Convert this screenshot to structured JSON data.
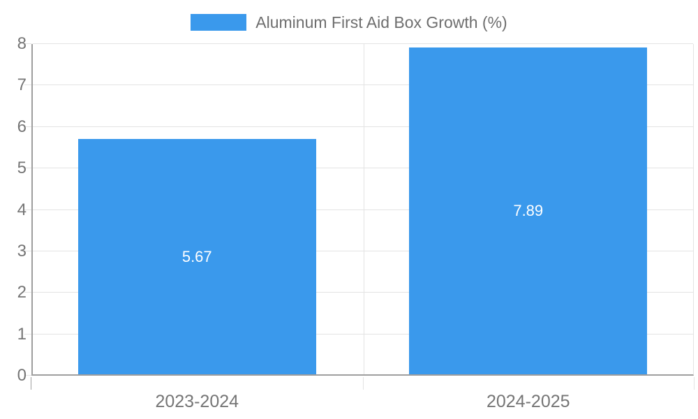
{
  "chart_data": {
    "type": "bar",
    "title": "Aluminum First Aid Box Growth (%)",
    "legend": [
      "Aluminum First Aid Box Growth (%)"
    ],
    "legend_position": "top-center",
    "categories": [
      "2023-2024",
      "2024-2025"
    ],
    "values": [
      5.67,
      7.89
    ],
    "value_labels": [
      "5.67",
      "7.89"
    ],
    "xlabel": "",
    "ylabel": "",
    "ylim": [
      0,
      8
    ],
    "yticks": [
      0,
      1,
      2,
      3,
      4,
      5,
      6,
      7,
      8
    ],
    "grid": true,
    "colors": {
      "bar": "#3A99EC",
      "value_label": "#FFFFFF",
      "axis_line": "#9E9E9E",
      "gridline": "#E3E3E3",
      "tick_label": "#757575",
      "legend_text": "#6E6E6E",
      "background": "#FFFFFF"
    }
  }
}
